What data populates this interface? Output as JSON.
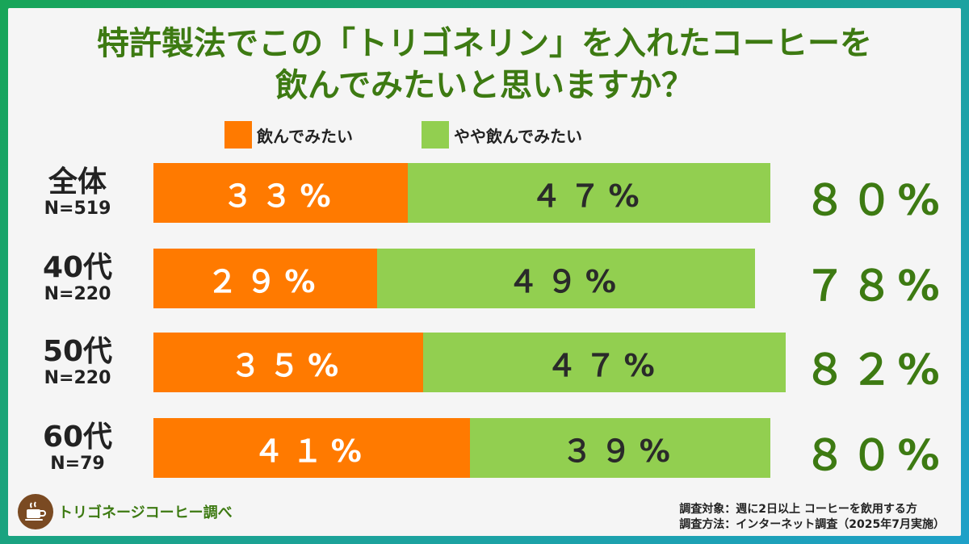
{
  "title_line1": "特許製法でこの「トリゴネリン」を入れたコーヒーを",
  "title_line2": "飲んでみたいと思いますか？",
  "colors": {
    "orange": "#ff7a00",
    "green": "#92cf50",
    "title": "#3d7a12"
  },
  "chart_data": {
    "type": "bar",
    "stacked": true,
    "orientation": "horizontal",
    "legend": [
      "飲んでみたい",
      "やや飲んでみたい"
    ],
    "legend_placement": "top",
    "rows": [
      {
        "group": "全体",
        "n": "N=519",
        "label_a": "３３%",
        "label_b": "４７%",
        "total_label": "８０%"
      },
      {
        "group": "40代",
        "n": "N=220",
        "label_a": "２９%",
        "label_b": "４９%",
        "total_label": "７８%"
      },
      {
        "group": "50代",
        "n": "N=220",
        "label_a": "３５%",
        "label_b": "４７%",
        "total_label": "８２%"
      },
      {
        "group": "60代",
        "n": "N=79",
        "label_a": "４１%",
        "label_b": "３９%",
        "total_label": "８０%"
      }
    ],
    "series": [
      {
        "name": "飲んでみたい",
        "values": [
          33,
          29,
          35,
          41
        ]
      },
      {
        "name": "やや飲んでみたい",
        "values": [
          47,
          49,
          47,
          39
        ]
      }
    ],
    "totals": [
      80,
      78,
      82,
      80
    ]
  },
  "brand": {
    "logo_icon": "coffee-cup-icon",
    "name": "トリゴネージコーヒー調べ"
  },
  "notes": {
    "line1": "調査対象：週に2日以上 コーヒーを飲用する方",
    "line2": "調査方法：インターネット調査（2025年7月実施）"
  }
}
